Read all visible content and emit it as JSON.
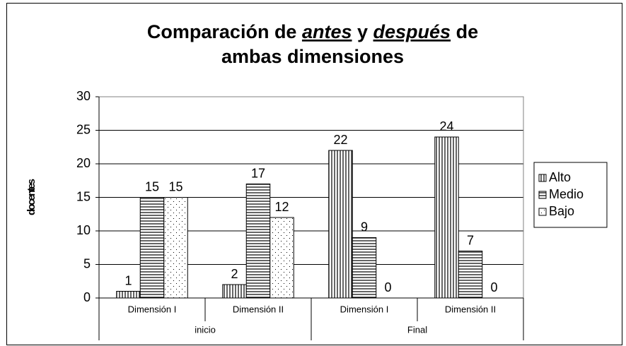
{
  "chart_data": {
    "type": "bar",
    "title": [
      [
        "Comparación de ",
        "antes",
        " y ",
        "después",
        " de"
      ],
      [
        "ambas dimensiones"
      ]
    ],
    "y_label": "docentes",
    "categories": [
      "Dimensión I",
      "Dimensión II",
      "Dimensión I",
      "Dimensión II"
    ],
    "category_groups": [
      "inicio",
      "Final"
    ],
    "series": [
      {
        "name": "Alto",
        "pattern": "vertical",
        "color": "#000000",
        "values": [
          1,
          2,
          22,
          24
        ]
      },
      {
        "name": "Medio",
        "pattern": "horizontal",
        "color": "#000000",
        "values": [
          15,
          17,
          9,
          7
        ]
      },
      {
        "name": "Bajo",
        "pattern": "dots",
        "color": "#000000",
        "values": [
          15,
          12,
          0,
          0
        ]
      }
    ],
    "ylim": [
      0,
      30
    ],
    "yticks": [
      0,
      5,
      10,
      15,
      20,
      25,
      30
    ],
    "grid": true,
    "legend": "right"
  }
}
